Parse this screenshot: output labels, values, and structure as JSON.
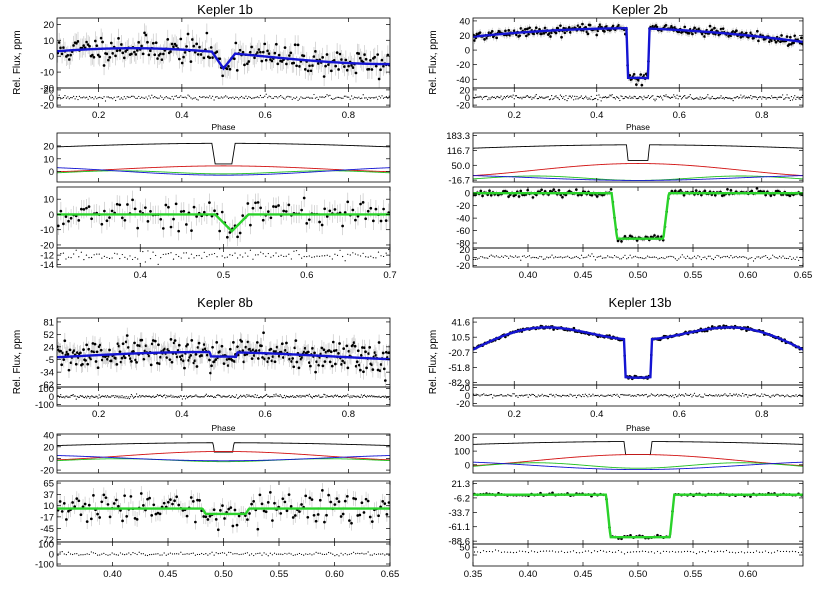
{
  "colors": {
    "data_points": "#000000",
    "error_bars": "#c8c8c8",
    "fit_blue": "#1414d2",
    "fit_green": "#2ad22a",
    "component_black": "#000000",
    "component_red": "#d21414",
    "component_green": "#22c022",
    "component_blue": "#1414d2",
    "axis": "#000000",
    "background": "#ffffff"
  },
  "chart_data": [
    {
      "type": "scatter",
      "title": "Kepler 1b",
      "ylabel": "Rel. Flux, ppm",
      "panels": [
        {
          "role": "lightcurve",
          "xlim": [
            0.1,
            0.9
          ],
          "ylim": [
            -20,
            24
          ],
          "xticks": [
            0.2,
            0.4,
            0.6,
            0.8
          ],
          "xticklabels": [
            "0.2",
            "0.4",
            "0.6",
            "0.8"
          ],
          "yticks": [
            -20,
            -10,
            0,
            10,
            20
          ],
          "yticklabels": [
            "-20",
            "-10",
            "0",
            "10",
            "20"
          ],
          "xlabel": "",
          "fit_color": "fit_blue",
          "model": {
            "kind": "phase",
            "base": 0,
            "amp": 5,
            "peak": 0.28,
            "depth": 10,
            "center": 0.5,
            "half_width": 0.02,
            "ingress": 0.008,
            "v_shape": true
          },
          "points": {
            "n": 230,
            "noise": 4.2,
            "err": 6,
            "seed": 11
          }
        },
        {
          "role": "residuals",
          "xlim": [
            0.1,
            0.9
          ],
          "ylim": [
            -25,
            25
          ],
          "yticks": [
            -20,
            0,
            20
          ],
          "yticklabels": [
            "-20",
            "0",
            "20"
          ],
          "points": {
            "n": 230,
            "noise": 3,
            "seed": 12
          }
        },
        {
          "role": "components",
          "xlim": [
            0.1,
            0.9
          ],
          "ylim": [
            -8,
            30
          ],
          "yticks": [
            0,
            10,
            20
          ],
          "yticklabels": [
            "0",
            "10",
            "20"
          ],
          "xlabel": "Phase",
          "components": [
            {
              "color": "component_black",
              "kind": "planet",
              "base": 18,
              "amp": 4,
              "depth": 16,
              "center": 0.5,
              "half_width": 0.02,
              "ingress": 0.008
            },
            {
              "color": "component_red",
              "kind": "reflection",
              "base": 2,
              "amp": 2.5
            },
            {
              "color": "component_green",
              "kind": "ellipsoidal",
              "base": -0.5,
              "amp": 1.2
            },
            {
              "color": "component_blue",
              "kind": "beaming",
              "base": 0.5,
              "amp": 3.2
            }
          ]
        },
        {
          "role": "transit",
          "xlim": [
            0.3,
            0.7
          ],
          "ylim": [
            -22,
            18
          ],
          "xticks": [
            0.4,
            0.5,
            0.6,
            0.7
          ],
          "xticklabels": [
            "0.4",
            "0.5",
            "0.6",
            "0.7"
          ],
          "yticks": [
            -20,
            -10,
            0,
            10
          ],
          "yticklabels": [
            "-20",
            "-10",
            "0",
            "10"
          ],
          "fit_color": "fit_green",
          "model": {
            "kind": "transit",
            "base": 0,
            "depth": 11,
            "center": 0.51,
            "half_width": 0.012,
            "ingress": 0.008,
            "v_shape": true
          },
          "points": {
            "n": 130,
            "noise": 4.6,
            "err": 6,
            "seed": 13
          }
        },
        {
          "role": "residuals",
          "xlim": [
            0.3,
            0.7
          ],
          "ylim": [
            -14.5,
            -10.5
          ],
          "yticks": [
            -14,
            -12
          ],
          "yticklabels": [
            "-14",
            "-12"
          ],
          "points": {
            "n": 130,
            "noise": 0.6,
            "offset": -12,
            "seed": 14
          }
        }
      ]
    },
    {
      "type": "scatter",
      "title": "Kepler 2b",
      "ylabel": "Rel. Flux, ppm",
      "panels": [
        {
          "role": "lightcurve",
          "xlim": [
            0.1,
            0.9
          ],
          "ylim": [
            -52,
            44
          ],
          "xticks": [
            0.2,
            0.4,
            0.6,
            0.8
          ],
          "xticklabels": [
            "0.2",
            "0.4",
            "0.6",
            "0.8"
          ],
          "yticks": [
            -40,
            -20,
            0,
            20,
            40
          ],
          "yticklabels": [
            "-40",
            "-20",
            "0",
            "20",
            "40"
          ],
          "fit_color": "fit_blue",
          "model": {
            "kind": "phase",
            "base": 5,
            "amp": 28,
            "peak": 0.5,
            "width_scale": 1.0,
            "depth": 68,
            "center": 0.5,
            "half_width": 0.024,
            "ingress": 0.004,
            "v_shape": false,
            "flat_top": 25
          },
          "points": {
            "n": 300,
            "noise": 3.2,
            "err": 5,
            "seed": 21
          }
        },
        {
          "role": "residuals",
          "xlim": [
            0.1,
            0.9
          ],
          "ylim": [
            -25,
            25
          ],
          "yticks": [
            -20,
            0,
            20
          ],
          "yticklabels": [
            "-20",
            "0",
            "20"
          ],
          "points": {
            "n": 300,
            "noise": 3,
            "seed": 22
          }
        },
        {
          "role": "components",
          "xlim": [
            0.1,
            0.9
          ],
          "ylim": [
            -25,
            195
          ],
          "yticks": [
            -16.7,
            50.0,
            116.7,
            183.3
          ],
          "yticklabels": [
            "-16.7",
            "50.0",
            "116.7",
            "183.3"
          ],
          "xlabel": "Phase",
          "components": [
            {
              "color": "component_black",
              "kind": "planet",
              "base": 120,
              "amp": 22,
              "depth": 70,
              "center": 0.5,
              "half_width": 0.024,
              "ingress": 0.004
            },
            {
              "color": "component_red",
              "kind": "reflection",
              "base": 28,
              "amp": 30
            },
            {
              "color": "component_green",
              "kind": "ellipsoidal",
              "base": -8,
              "amp": 10
            },
            {
              "color": "component_blue",
              "kind": "beaming",
              "base": -6,
              "amp": 12
            }
          ]
        },
        {
          "role": "transit",
          "xlim": [
            0.35,
            0.65
          ],
          "ylim": [
            -88,
            10
          ],
          "xticks": [
            0.4,
            0.45,
            0.5,
            0.55,
            0.6,
            0.65
          ],
          "xticklabels": [
            "0.40",
            "0.45",
            "0.50",
            "0.55",
            "0.60",
            "0.65"
          ],
          "yticks": [
            -80,
            -60,
            -40,
            -20,
            0
          ],
          "yticklabels": [
            "-80",
            "-60",
            "-40",
            "-20",
            "0"
          ],
          "fit_color": "fit_green",
          "model": {
            "kind": "transit",
            "base": 0,
            "depth": 73,
            "center": 0.502,
            "half_width": 0.021,
            "ingress": 0.005,
            "v_shape": false
          },
          "points": {
            "n": 190,
            "noise": 2.5,
            "err": 4,
            "seed": 23
          }
        },
        {
          "role": "residuals",
          "xlim": [
            0.35,
            0.65
          ],
          "ylim": [
            -24,
            24
          ],
          "yticks": [
            -20,
            0,
            20
          ],
          "yticklabels": [
            "-20",
            "0",
            "20"
          ],
          "points": {
            "n": 190,
            "noise": 3,
            "seed": 24
          }
        }
      ]
    },
    {
      "type": "scatter",
      "title": "Kepler 8b",
      "ylabel": "Rel. Flux, ppm",
      "panels": [
        {
          "role": "lightcurve",
          "xlim": [
            0.1,
            0.9
          ],
          "ylim": [
            -68,
            90
          ],
          "xticks": [
            0.2,
            0.4,
            0.6,
            0.8
          ],
          "xticklabels": [
            "0.2",
            "0.4",
            "0.6",
            "0.8"
          ],
          "yticks": [
            -62,
            -34,
            -5,
            24,
            52,
            81
          ],
          "yticklabels": [
            "-62",
            "-34",
            "-5",
            "24",
            "52",
            "81"
          ],
          "fit_color": "fit_blue",
          "model": {
            "kind": "phase",
            "base": 2,
            "amp": 10,
            "peak": 0.45,
            "depth": 10,
            "center": 0.5,
            "half_width": 0.03,
            "ingress": 0.003,
            "v_shape": false
          },
          "points": {
            "n": 320,
            "noise": 17,
            "err": 18,
            "seed": 31
          }
        },
        {
          "role": "residuals",
          "xlim": [
            0.1,
            0.9
          ],
          "ylim": [
            -120,
            120
          ],
          "yticks": [
            -100,
            0,
            100
          ],
          "yticklabels": [
            "-100",
            "0",
            "100"
          ],
          "points": {
            "n": 320,
            "noise": 12,
            "seed": 32
          }
        },
        {
          "role": "components",
          "xlim": [
            0.1,
            0.9
          ],
          "ylim": [
            -25,
            42
          ],
          "yticks": [
            -20,
            0,
            20,
            40
          ],
          "yticklabels": [
            "-20",
            "0",
            "20",
            "40"
          ],
          "xlabel": "Phase",
          "components": [
            {
              "color": "component_black",
              "kind": "planet",
              "base": 20,
              "amp": 7,
              "depth": 16,
              "center": 0.5,
              "half_width": 0.022,
              "ingress": 0.003
            },
            {
              "color": "component_red",
              "kind": "reflection",
              "base": 4,
              "amp": 8
            },
            {
              "color": "component_green",
              "kind": "ellipsoidal",
              "base": -3,
              "amp": 2.5
            },
            {
              "color": "component_blue",
              "kind": "beaming",
              "base": 1,
              "amp": 5
            }
          ]
        },
        {
          "role": "transit",
          "xlim": [
            0.35,
            0.65
          ],
          "ylim": [
            -78,
            70
          ],
          "xticks": [
            0.4,
            0.45,
            0.5,
            0.55,
            0.6,
            0.65
          ],
          "xticklabels": [
            "0.40",
            "0.45",
            "0.50",
            "0.55",
            "0.60",
            "0.65"
          ],
          "yticks": [
            -72,
            -45,
            -17,
            10,
            37,
            65
          ],
          "yticklabels": [
            "-72",
            "-45",
            "-17",
            "10",
            "37",
            "65"
          ],
          "fit_color": "fit_green",
          "model": {
            "kind": "transit",
            "base": 3,
            "depth": 13,
            "center": 0.502,
            "half_width": 0.018,
            "ingress": 0.003,
            "v_shape": false
          },
          "points": {
            "n": 160,
            "noise": 17,
            "err": 18,
            "seed": 33
          }
        },
        {
          "role": "residuals",
          "xlim": [
            0.35,
            0.65
          ],
          "ylim": [
            -120,
            120
          ],
          "yticks": [
            -100,
            0,
            100
          ],
          "yticklabels": [
            "-100",
            "0",
            "100"
          ],
          "points": {
            "n": 160,
            "noise": 10,
            "seed": 34
          }
        }
      ]
    },
    {
      "type": "scatter",
      "title": "Kepler 13b",
      "ylabel": "Rel. Flux, ppm",
      "panels": [
        {
          "role": "lightcurve",
          "xlim": [
            0.1,
            0.9
          ],
          "ylim": [
            -88,
            50
          ],
          "xticks": [
            0.2,
            0.4,
            0.6,
            0.8
          ],
          "xticklabels": [
            "0.2",
            "0.4",
            "0.6",
            "0.8"
          ],
          "yticks": [
            -82.9,
            -51.8,
            -20.7,
            10.5,
            41.6
          ],
          "yticklabels": [
            "-82.9",
            "-51.8",
            "-20.7",
            "10.5",
            "41.6"
          ],
          "fit_color": "fit_blue",
          "model": {
            "kind": "double_hump",
            "base": 5,
            "depth": 78,
            "center": 0.5,
            "half_width": 0.03,
            "ingress": 0.004,
            "v_shape": false
          },
          "points": {
            "n": 260,
            "noise": 1.6,
            "err": 3,
            "seed": 41
          }
        },
        {
          "role": "residuals",
          "xlim": [
            0.1,
            0.9
          ],
          "ylim": [
            -26,
            26
          ],
          "yticks": [
            -20,
            0,
            20
          ],
          "yticklabels": [
            "-20",
            "0",
            "20"
          ],
          "points": {
            "n": 260,
            "noise": 2.2,
            "seed": 42
          }
        },
        {
          "role": "components",
          "xlim": [
            0.1,
            0.9
          ],
          "ylim": [
            -60,
            225
          ],
          "yticks": [
            0,
            100,
            200
          ],
          "yticklabels": [
            "0",
            "100",
            "200"
          ],
          "xlabel": "Phase",
          "components": [
            {
              "color": "component_black",
              "kind": "planet",
              "base": 140,
              "amp": 30,
              "depth": 95,
              "center": 0.5,
              "half_width": 0.03,
              "ingress": 0.004
            },
            {
              "color": "component_red",
              "kind": "reflection",
              "base": 30,
              "amp": 45
            },
            {
              "color": "component_green",
              "kind": "ellipsoidal",
              "base": -5,
              "amp": 20
            },
            {
              "color": "component_blue",
              "kind": "beaming",
              "base": -5,
              "amp": 30
            }
          ]
        },
        {
          "role": "transit",
          "xlim": [
            0.35,
            0.65
          ],
          "ylim": [
            -94,
            26
          ],
          "xticks": [
            0.35,
            0.4,
            0.45,
            0.5,
            0.55,
            0.6
          ],
          "xticklabels": [
            "0.35",
            "0.40",
            "0.45",
            "0.50",
            "0.55",
            "0.60"
          ],
          "yticks": [
            -88.6,
            -61.1,
            -33.7,
            -6.2,
            21.3
          ],
          "yticklabels": [
            "-88.6",
            "-61.1",
            "-33.7",
            "-6.2",
            "21.3"
          ],
          "fit_color": "fit_green",
          "model": {
            "kind": "transit",
            "base": 0,
            "depth": 81,
            "center": 0.502,
            "half_width": 0.027,
            "ingress": 0.004,
            "v_shape": false
          },
          "points": {
            "n": 110,
            "noise": 1.6,
            "err": 2.5,
            "seed": 43
          }
        },
        {
          "role": "residuals",
          "xlim": [
            0.35,
            0.65
          ],
          "ylim": [
            -70,
            70
          ],
          "yticks": [
            0,
            50
          ],
          "yticklabels": [
            "0",
            "50"
          ],
          "points": {
            "n": 110,
            "noise": 5,
            "offset": 20,
            "seed": 44
          }
        }
      ]
    }
  ]
}
